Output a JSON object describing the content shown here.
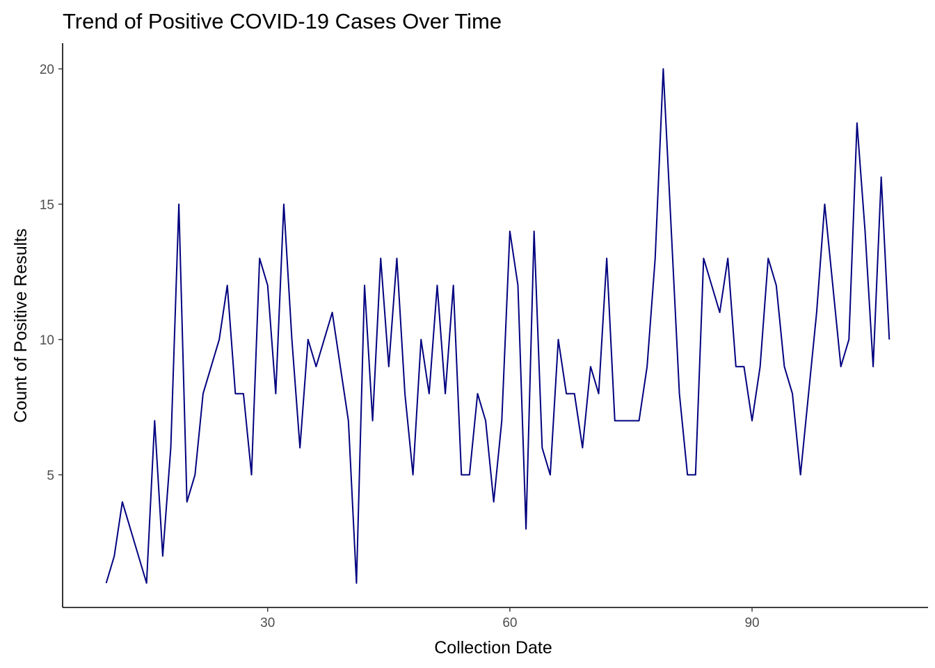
{
  "chart_data": {
    "type": "line",
    "title": "Trend of Positive COVID-19 Cases Over Time",
    "xlabel": "Collection Date",
    "ylabel": "Count of Positive Results",
    "xlim": [
      4.6,
      111.8
    ],
    "ylim": [
      0.1,
      20.95
    ],
    "x_ticks": [
      30,
      60,
      90
    ],
    "y_ticks": [
      5,
      10,
      15,
      20
    ],
    "grid": false,
    "legend": "none",
    "series_color": "#00007f",
    "series": [
      {
        "x": [
          10,
          11,
          12,
          13,
          14,
          15,
          16,
          17,
          18,
          19,
          20,
          21,
          22,
          23,
          24,
          25,
          26,
          27,
          28,
          29,
          30,
          31,
          32,
          33,
          34,
          35,
          36,
          37,
          38,
          39,
          40,
          41,
          42,
          43,
          44,
          45,
          46,
          47,
          48,
          49,
          50,
          51,
          52,
          53,
          54,
          55,
          56,
          57,
          58,
          59,
          60,
          61,
          62,
          63,
          64,
          65,
          66,
          67,
          68,
          69,
          70,
          71,
          72,
          73,
          74,
          75,
          76,
          77,
          78,
          79,
          80,
          81,
          82,
          83,
          84,
          85,
          86,
          87,
          88,
          89,
          90,
          91,
          92,
          93,
          94,
          95,
          96,
          97,
          98,
          99,
          100,
          101,
          102,
          103,
          104,
          105,
          106,
          107
        ],
        "y": [
          1,
          2,
          4,
          3,
          2,
          1,
          7,
          2,
          6,
          15,
          4,
          5,
          8,
          9,
          10,
          12,
          8,
          8,
          5,
          13,
          12,
          8,
          15,
          10,
          6,
          10,
          9,
          10,
          11,
          9,
          7,
          1,
          12,
          7,
          13,
          9,
          13,
          8,
          5,
          10,
          8,
          12,
          8,
          12,
          5,
          5,
          8,
          7,
          4,
          7,
          14,
          12,
          3,
          14,
          6,
          5,
          10,
          8,
          8,
          6,
          9,
          8,
          13,
          7,
          7,
          7,
          7,
          9,
          13,
          20,
          14,
          8,
          5,
          5,
          13,
          12,
          11,
          13,
          9,
          9,
          7,
          9,
          13,
          12,
          9,
          8,
          5,
          8,
          11,
          15,
          12,
          9,
          10,
          18,
          14,
          9,
          16,
          10
        ]
      }
    ]
  }
}
